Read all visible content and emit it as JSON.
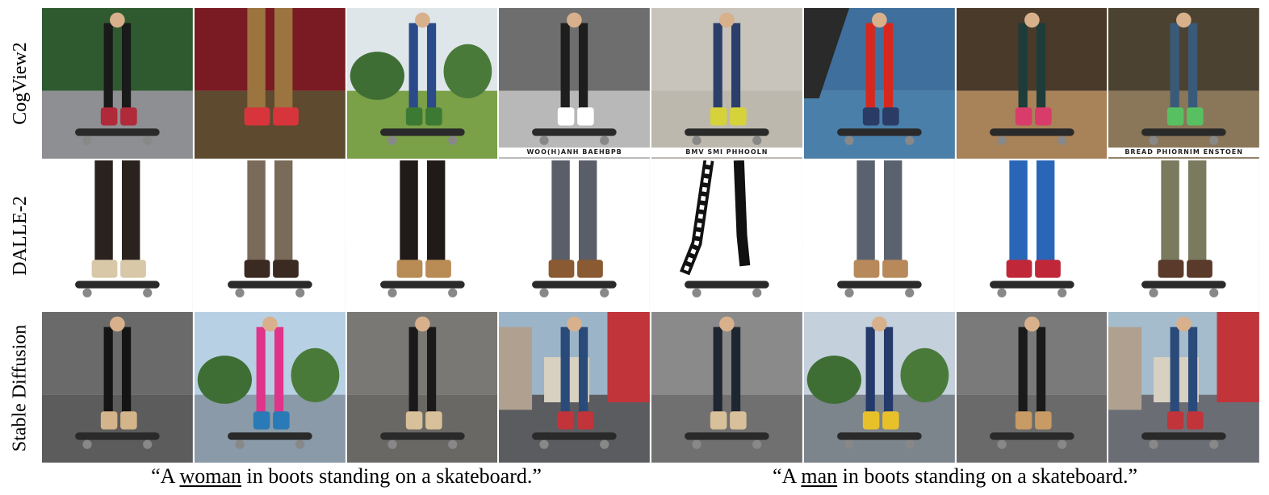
{
  "row_labels": [
    "CogView2",
    "DALLE-2",
    "Stable Diffusion"
  ],
  "captions": {
    "left": {
      "before": "“A ",
      "underlined": "woman",
      "after": " in boots standing on a skateboard.”"
    },
    "right": {
      "before": "“A ",
      "underlined": "man",
      "after": " in boots standing on a skateboard.”"
    }
  },
  "tiles": [
    {
      "row": 0,
      "col": 0,
      "scene": "outdoor-asphalt",
      "sky": "#2f5a2f",
      "ground": "#8d8f92",
      "subject": "#1a1a1a",
      "accent": "#b02a3a"
    },
    {
      "row": 0,
      "col": 1,
      "scene": "closeup",
      "sky": "#7a1a22",
      "ground": "#5e4a2e",
      "subject": "#9c7440",
      "accent": "#d8343c"
    },
    {
      "row": 0,
      "col": 2,
      "scene": "park",
      "sky": "#dfe6ea",
      "ground": "#7aa048",
      "subject": "#2a4a8a",
      "accent": "#3c7a34"
    },
    {
      "row": 0,
      "col": 3,
      "scene": "studio-gray",
      "sky": "#6e6e6e",
      "ground": "#b8b8b8",
      "subject": "#1e1e1e",
      "accent": "#ffffff",
      "tile_label": "WOO(H)ANH  BAEHBPB"
    },
    {
      "row": 0,
      "col": 4,
      "scene": "plaza",
      "sky": "#c8c4bc",
      "ground": "#bdb8ae",
      "subject": "#2b3f6a",
      "accent": "#d6d23a",
      "tile_label": "BMV SMI PHHOOLN"
    },
    {
      "row": 0,
      "col": 5,
      "scene": "ramp-blue",
      "sky": "#3f6f9c",
      "ground": "#4a7faa",
      "subject": "#d6281e",
      "accent": "#2a3c66"
    },
    {
      "row": 0,
      "col": 6,
      "scene": "dusk",
      "sky": "#4a3a2a",
      "ground": "#a88258",
      "subject": "#1e3c3a",
      "accent": "#d83c6a"
    },
    {
      "row": 0,
      "col": 7,
      "scene": "dusk",
      "sky": "#4c4232",
      "ground": "#8a7658",
      "subject": "#3a5a7a",
      "accent": "#58c060",
      "tile_label": "BREAD PHIORNIM ENSTOEN"
    },
    {
      "row": 1,
      "col": 0,
      "scene": "white-legs",
      "sky": "#ffffff",
      "ground": "#f4f4f4",
      "subject": "#2a221e",
      "accent": "#d8c8a8"
    },
    {
      "row": 1,
      "col": 1,
      "scene": "white-legs",
      "sky": "#ffffff",
      "ground": "#f6f6f6",
      "subject": "#7a6a5a",
      "accent": "#3a2a22"
    },
    {
      "row": 1,
      "col": 2,
      "scene": "white-legs",
      "sky": "#ffffff",
      "ground": "#f6f6f6",
      "subject": "#201a18",
      "accent": "#b88c54"
    },
    {
      "row": 1,
      "col": 3,
      "scene": "white-legs",
      "sky": "#ffffff",
      "ground": "#f6f6f6",
      "subject": "#5a5e68",
      "accent": "#8a5a32"
    },
    {
      "row": 1,
      "col": 4,
      "scene": "sketch",
      "sky": "#ffffff",
      "ground": "#ffffff",
      "subject": "#111111",
      "accent": "#ffffff"
    },
    {
      "row": 1,
      "col": 5,
      "scene": "white-legs",
      "sky": "#ffffff",
      "ground": "#f6f6f6",
      "subject": "#5a6270",
      "accent": "#b8895a"
    },
    {
      "row": 1,
      "col": 6,
      "scene": "white-legs",
      "sky": "#ffffff",
      "ground": "#f6f6f6",
      "subject": "#2a66b8",
      "accent": "#c0283a"
    },
    {
      "row": 1,
      "col": 7,
      "scene": "white-legs",
      "sky": "#ffffff",
      "ground": "#f6f6f6",
      "subject": "#7a7a5e",
      "accent": "#5a3a2a"
    },
    {
      "row": 2,
      "col": 0,
      "scene": "asphalt",
      "sky": "#6a6a6a",
      "ground": "#5c5c5c",
      "subject": "#141414",
      "accent": "#d4b48a"
    },
    {
      "row": 2,
      "col": 1,
      "scene": "street-trees",
      "sky": "#b8d0e4",
      "ground": "#8a9aa8",
      "subject": "#e0338a",
      "accent": "#2a7ab8"
    },
    {
      "row": 2,
      "col": 2,
      "scene": "asphalt",
      "sky": "#7a7874",
      "ground": "#6a6864",
      "subject": "#1a1a1a",
      "accent": "#d8c09a"
    },
    {
      "row": 2,
      "col": 3,
      "scene": "city",
      "sky": "#9cb4c8",
      "ground": "#5a5c60",
      "subject": "#2a4a7a",
      "accent": "#c0343a"
    },
    {
      "row": 2,
      "col": 4,
      "scene": "asphalt",
      "sky": "#8a8a8a",
      "ground": "#707070",
      "subject": "#1e2632",
      "accent": "#d8c09a"
    },
    {
      "row": 2,
      "col": 5,
      "scene": "street-trees",
      "sky": "#c4d0dc",
      "ground": "#7c848c",
      "subject": "#243a6a",
      "accent": "#e8c02a"
    },
    {
      "row": 2,
      "col": 6,
      "scene": "asphalt",
      "sky": "#7a7a7a",
      "ground": "#6a6a6a",
      "subject": "#1a1a1a",
      "accent": "#c89a64"
    },
    {
      "row": 2,
      "col": 7,
      "scene": "city",
      "sky": "#a4bccc",
      "ground": "#6a6e74",
      "subject": "#2a4a7a",
      "accent": "#c0343a"
    }
  ]
}
